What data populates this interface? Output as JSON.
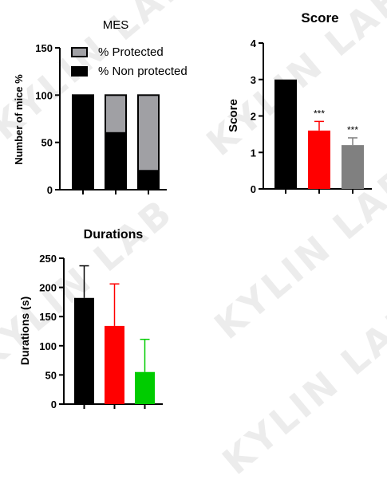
{
  "watermark": "KYLIN LAB",
  "chart_data": [
    {
      "type": "bar",
      "title": "MES",
      "ylabel": "Number of mice %",
      "ylim": [
        0,
        150
      ],
      "yticks": [
        "0",
        "50",
        "100",
        "150"
      ],
      "stacked": true,
      "categories": [
        "",
        "",
        ""
      ],
      "series": [
        {
          "name": "% Non protected",
          "color": "#000000",
          "values": [
            100,
            60,
            20
          ]
        },
        {
          "name": "% Protected",
          "color": "#a0a0a4",
          "values": [
            0,
            40,
            80
          ]
        }
      ],
      "legend": "top-right"
    },
    {
      "type": "bar",
      "title": "Score",
      "ylabel": "Score",
      "ylim": [
        0,
        4
      ],
      "yticks": [
        "0",
        "1",
        "2",
        "3",
        "4"
      ],
      "categories": [
        "",
        "",
        ""
      ],
      "values": [
        3.0,
        1.6,
        1.2
      ],
      "errors": [
        0,
        0.25,
        0.2
      ],
      "colors": [
        "#000000",
        "#ff0000",
        "#808080"
      ],
      "annotations": [
        "",
        "***",
        "***"
      ]
    },
    {
      "type": "bar",
      "title": "Durations",
      "ylabel": "Durations (s)",
      "ylim": [
        0,
        250
      ],
      "yticks": [
        "0",
        "50",
        "100",
        "150",
        "200",
        "250"
      ],
      "categories": [
        "",
        "",
        ""
      ],
      "values": [
        182,
        134,
        55
      ],
      "errors": [
        55,
        72,
        56
      ],
      "colors": [
        "#000000",
        "#ff0000",
        "#00cc00"
      ]
    }
  ]
}
